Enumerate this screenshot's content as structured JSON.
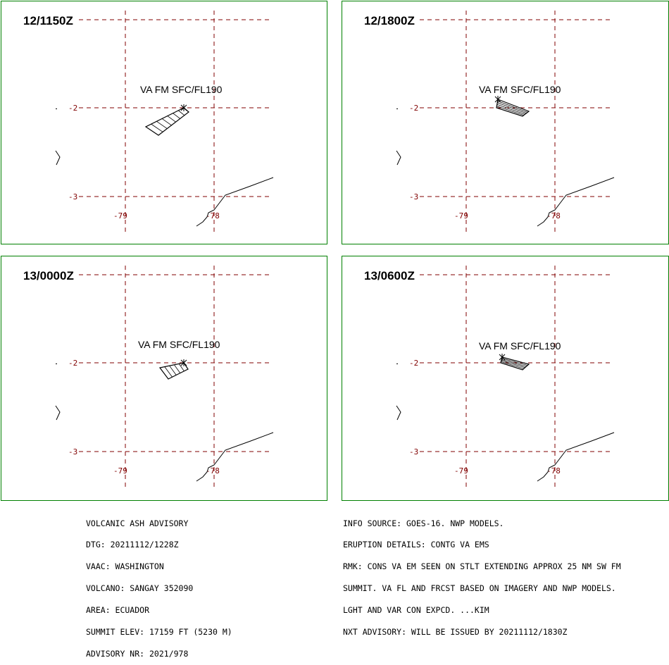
{
  "panels": [
    {
      "time": "12/1150Z",
      "label": "VA FM SFC/FL190",
      "ash_polygon": [
        [
          260,
          152
        ],
        [
          267,
          158
        ],
        [
          224,
          191
        ],
        [
          206,
          179
        ]
      ],
      "hatch_count": 6
    },
    {
      "time": "12/1800Z",
      "label": "VA FM SFC/FL190",
      "ash_polygon": [
        [
          706,
          140
        ],
        [
          750,
          157
        ],
        [
          741,
          164
        ],
        [
          704,
          152
        ]
      ],
      "hatch_count": 4
    },
    {
      "time": "13/0000Z",
      "label": "VA FM SFC/FL190",
      "ash_polygon": [
        [
          260,
          514
        ],
        [
          266,
          523
        ],
        [
          238,
          537
        ],
        [
          226,
          521
        ]
      ],
      "hatch_count": 4
    },
    {
      "time": "13/0600Z",
      "label": "VA FM SFC/FL190",
      "ash_polygon": [
        [
          712,
          506
        ],
        [
          750,
          516
        ],
        [
          741,
          524
        ],
        [
          710,
          514
        ]
      ],
      "hatch_count": 4
    }
  ],
  "grid": {
    "lat_labels": [
      "-2",
      "-3"
    ],
    "lon_labels": [
      "-79",
      "-78"
    ]
  },
  "advisory_left": [
    "VOLCANIC ASH ADVISORY",
    "DTG: 20211112/1228Z",
    "VAAC: WASHINGTON",
    "VOLCANO: SANGAY 352090",
    "AREA: ECUADOR",
    "SUMMIT ELEV: 17159 FT (5230 M)",
    "ADVISORY NR: 2021/978"
  ],
  "advisory_right": [
    "INFO SOURCE: GOES-16. NWP MODELS.",
    "ERUPTION DETAILS: CONTG VA EMS",
    "RMK: CONS VA EM SEEN ON STLT EXTENDING APPROX 25 NM SW FM",
    "SUMMIT. VA FL AND FRCST BASED ON IMAGERY AND NWP MODELS.",
    "LGHT AND VAR CON EXPCD. ...KIM",
    "NXT ADVISORY: WILL BE ISSUED BY 20211112/1830Z"
  ],
  "colors": {
    "border": "#008000",
    "grid": "#800000",
    "coast": "#000000"
  }
}
